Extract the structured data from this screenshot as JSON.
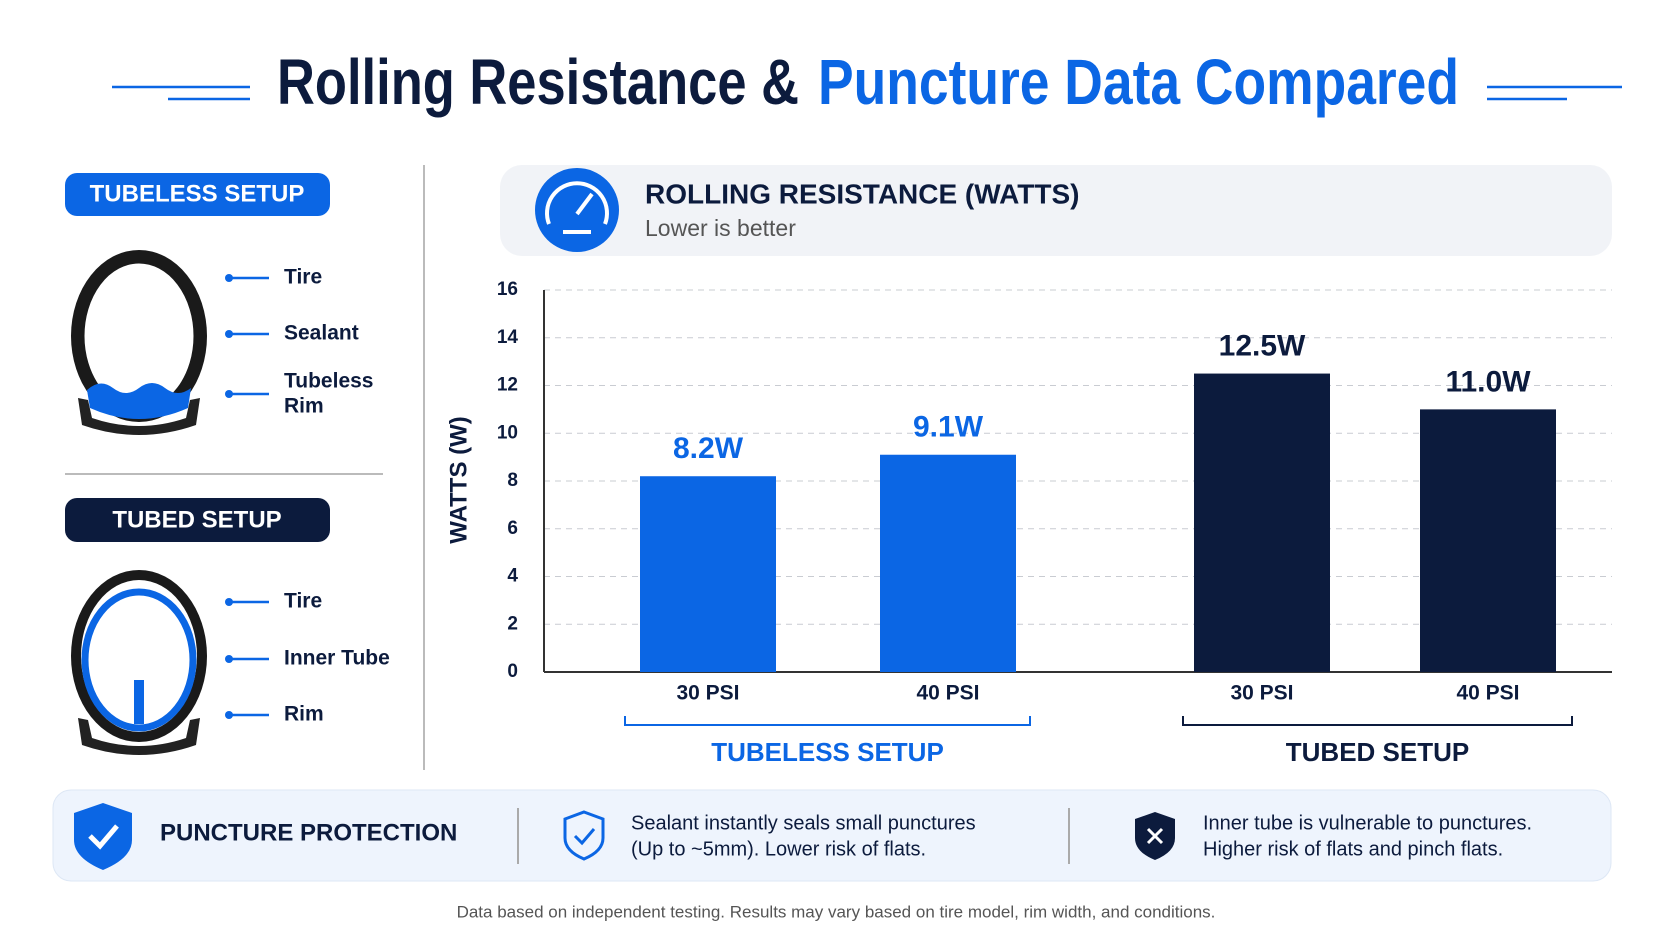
{
  "header": {
    "title_part1": "Rolling Resistance &",
    "title_part2": "Puncture Data Compared"
  },
  "left_panel": {
    "tubeless": {
      "title": "TUBELESS SETUP",
      "parts": [
        [
          "Tire"
        ],
        [
          "Sealant"
        ],
        [
          "Tubeless",
          "Rim"
        ]
      ]
    },
    "tubed": {
      "title": "TUBED SETUP",
      "parts": [
        [
          "Tire"
        ],
        [
          "Inner Tube"
        ],
        [
          "Rim"
        ]
      ]
    }
  },
  "chart_data": {
    "type": "bar",
    "title": "ROLLING RESISTANCE (WATTS)",
    "subtitle": "Lower is better",
    "y_label": "WATTS (W)",
    "ylim": [
      0,
      16
    ],
    "yticks": [
      0,
      2,
      4,
      6,
      8,
      10,
      12,
      14,
      16
    ],
    "grid": true,
    "series": [
      {
        "name": "TUBELESS SETUP",
        "color": "#0b66e4",
        "categories": [
          "30 PSI",
          "40 PSI"
        ],
        "values": [
          8.2,
          9.1
        ],
        "value_labels": [
          "8.2W",
          "9.1W"
        ]
      },
      {
        "name": "TUBED SETUP",
        "color": "#0c1b3d",
        "categories": [
          "30 PSI",
          "40 PSI"
        ],
        "values": [
          12.5,
          11.0
        ],
        "value_labels": [
          "12.5W",
          "11.0W"
        ]
      }
    ]
  },
  "footer": {
    "title": "PUNCTURE PROTECTION",
    "tubeless_text": [
      "Sealant instantly seals small punctures",
      "(Up to ~5mm). Lower risk of flats."
    ],
    "tubed_text": [
      "Inner tube is vulnerable to punctures.",
      "Higher risk of flats and pinch flats."
    ],
    "note": "Data based on independent testing. Results may vary based on tire model, rim width, and conditions."
  }
}
